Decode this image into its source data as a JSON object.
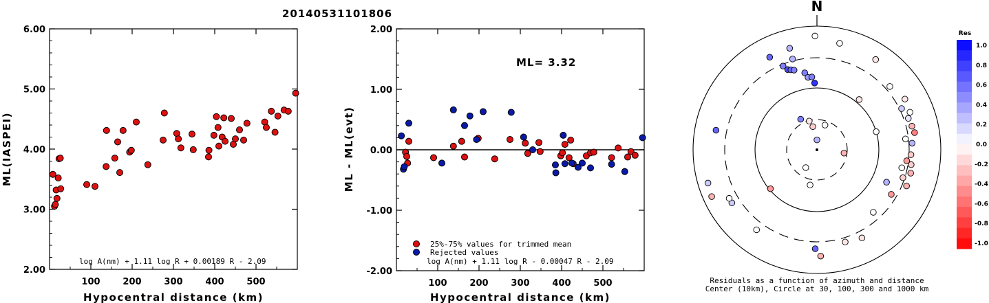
{
  "title": "20140531101806",
  "colors": {
    "accepted": "#dd1111",
    "rejected": "#0a1aa8",
    "axis": "#000000"
  },
  "chart_data": [
    {
      "type": "scatter",
      "id": "left",
      "ylabel": "ML(IASPEI)",
      "xlabel": "Hypocentral distance (km)",
      "xlim": [
        0,
        600
      ],
      "ylim": [
        2.0,
        6.0
      ],
      "xticks": [
        "100",
        "200",
        "300",
        "400",
        "500"
      ],
      "xtick_values": [
        100,
        200,
        300,
        400,
        500
      ],
      "yticks": [
        "2.00",
        "3.00",
        "4.00",
        "5.00",
        "6.00"
      ],
      "ytick_values": [
        2,
        3,
        4,
        5,
        6
      ],
      "formula": "log A(nm) + 1.11 log R + 0.00189 R - 2.09",
      "series": [
        {
          "x": [
            8,
            12,
            14,
            16,
            18,
            21,
            23,
            26,
            27,
            90,
            110,
            137,
            138,
            158,
            165,
            170,
            178,
            194,
            198,
            210,
            238,
            275,
            278,
            308,
            312,
            318,
            345,
            348,
            385,
            386,
            398,
            404,
            408,
            410,
            418,
            422,
            425,
            440,
            445,
            450,
            460,
            470,
            478,
            521,
            525,
            537,
            546,
            553,
            568,
            578,
            596
          ],
          "y": [
            3.58,
            3.05,
            3.08,
            3.32,
            3.18,
            3.52,
            3.84,
            3.85,
            3.34,
            3.41,
            3.38,
            3.71,
            4.31,
            3.85,
            4.12,
            3.61,
            4.31,
            3.95,
            3.98,
            4.45,
            3.74,
            4.15,
            4.6,
            4.26,
            4.17,
            4.02,
            4.25,
            3.99,
            3.87,
            3.98,
            4.23,
            4.54,
            4.36,
            4.05,
            4.2,
            4.52,
            4.13,
            4.51,
            4.08,
            4.17,
            4.32,
            4.15,
            4.43,
            4.45,
            4.36,
            4.63,
            4.28,
            4.55,
            4.65,
            4.63,
            4.93
          ]
        }
      ]
    },
    {
      "type": "scatter",
      "id": "middle",
      "ylabel": "ML - ML(evt)",
      "xlabel": "Hypocentral distance (km)",
      "xlim": [
        0,
        600
      ],
      "ylim": [
        -2.0,
        2.0
      ],
      "xticks": [
        "100",
        "200",
        "300",
        "400",
        "500"
      ],
      "xtick_values": [
        100,
        200,
        300,
        400,
        500
      ],
      "yticks": [
        "-2.00",
        "-1.00",
        "0.00",
        "1.00",
        "2.00"
      ],
      "ytick_values": [
        -2,
        -1,
        0,
        1,
        2
      ],
      "reference_line": 0,
      "annotation": "ML= 3.32",
      "formula": "log A(nm) + 1.11 log R - 0.00047 R - 2.09",
      "legend": [
        "25%-75% values for trimmed mean",
        "Rejected values"
      ],
      "series": [
        {
          "name": "25%-75% values for trimmed mean",
          "x": [
            22,
            25,
            27,
            30,
            90,
            138,
            158,
            165,
            198,
            238,
            275,
            312,
            318,
            345,
            348,
            398,
            402,
            408,
            418,
            422,
            428,
            460,
            470,
            478,
            521,
            537,
            560,
            568,
            578
          ],
          "y": [
            -0.04,
            -0.11,
            -0.22,
            0.14,
            -0.13,
            0.06,
            0.14,
            -0.12,
            0.19,
            -0.15,
            0.17,
            0.11,
            -0.06,
            0.12,
            -0.03,
            -0.1,
            -0.05,
            0.09,
            -0.13,
            0.16,
            -0.23,
            -0.1,
            -0.05,
            -0.04,
            -0.13,
            0.03,
            -0.12,
            -0.03,
            -0.09
          ]
        },
        {
          "name": "Rejected values",
          "x": [
            12,
            17,
            19,
            30,
            110,
            138,
            165,
            178,
            194,
            210,
            278,
            308,
            330,
            385,
            386,
            404,
            408,
            425,
            440,
            450,
            470,
            521,
            553,
            596
          ],
          "y": [
            0.23,
            -0.32,
            -0.28,
            0.44,
            -0.22,
            0.66,
            0.4,
            0.56,
            0.17,
            0.63,
            0.62,
            0.21,
            0.0,
            -0.25,
            -0.38,
            0.24,
            -0.23,
            -0.22,
            -0.29,
            -0.22,
            -0.3,
            -0.24,
            -0.36,
            0.2
          ]
        }
      ]
    },
    {
      "type": "scatter",
      "id": "polar",
      "title": "N",
      "caption_line1": "Residuals as a function of azimuth and distance",
      "caption_line2": "Center (10km), Circle at 30, 100, 300 and 1000 km",
      "ring_distances_km": [
        30,
        100,
        300,
        1000
      ],
      "colorbar": {
        "title": "Res",
        "ticks": [
          "1.0",
          "0.8",
          "0.6",
          "0.4",
          "0.2",
          "0.0",
          "-0.2",
          "-0.4",
          "-0.6",
          "-0.8",
          "-1.0"
        ],
        "range": [
          -1.0,
          1.0
        ]
      },
      "points": [
        {
          "az": 359,
          "r": 0.92,
          "res": 0.0
        },
        {
          "az": 12,
          "r": 0.88,
          "res": 0.0
        },
        {
          "az": 33,
          "r": 0.87,
          "res": -0.1
        },
        {
          "az": 345,
          "r": 0.85,
          "res": 0.3
        },
        {
          "az": 333,
          "r": 0.84,
          "res": 0.6
        },
        {
          "az": 345,
          "r": 0.76,
          "res": 0.3
        },
        {
          "az": 338,
          "r": 0.73,
          "res": 0.5
        },
        {
          "az": 340,
          "r": 0.69,
          "res": 0.7
        },
        {
          "az": 342,
          "r": 0.68,
          "res": 0.6
        },
        {
          "az": 344,
          "r": 0.67,
          "res": 0.5
        },
        {
          "az": 351,
          "r": 0.63,
          "res": 0.5
        },
        {
          "az": 353,
          "r": 0.59,
          "res": 0.4
        },
        {
          "az": 356,
          "r": 0.59,
          "res": 0.5
        },
        {
          "az": 358,
          "r": 0.54,
          "res": 0.8
        },
        {
          "az": 49,
          "r": 0.78,
          "res": 0.0
        },
        {
          "az": 60,
          "r": 0.82,
          "res": -0.1
        },
        {
          "az": 64,
          "r": 0.76,
          "res": 0.2
        },
        {
          "az": 68,
          "r": 0.81,
          "res": 0.0
        },
        {
          "az": 71,
          "r": 0.78,
          "res": 0.1
        },
        {
          "az": 76,
          "r": 0.79,
          "res": -0.3
        },
        {
          "az": 80,
          "r": 0.8,
          "res": -0.5
        },
        {
          "az": 83,
          "r": 0.72,
          "res": 0.0
        },
        {
          "az": 86,
          "r": 0.77,
          "res": 0.3
        },
        {
          "az": 93,
          "r": 0.76,
          "res": -0.2
        },
        {
          "az": 97,
          "r": 0.73,
          "res": -0.4
        },
        {
          "az": 99,
          "r": 0.77,
          "res": -0.2
        },
        {
          "az": 102,
          "r": 0.7,
          "res": 0.0
        },
        {
          "az": 104,
          "r": 0.78,
          "res": -0.3
        },
        {
          "az": 108,
          "r": 0.73,
          "res": -0.2
        },
        {
          "az": 112,
          "r": 0.78,
          "res": -0.3
        },
        {
          "az": 115,
          "r": 0.62,
          "res": 0.3
        },
        {
          "az": 121,
          "r": 0.7,
          "res": -0.4
        },
        {
          "az": 40,
          "r": 0.53,
          "res": -0.1
        },
        {
          "az": 73,
          "r": 0.5,
          "res": 0.0
        },
        {
          "az": 138,
          "r": 0.68,
          "res": 0.0
        },
        {
          "az": 153,
          "r": 0.8,
          "res": -0.1
        },
        {
          "az": 163,
          "r": 0.78,
          "res": -0.1
        },
        {
          "az": 178,
          "r": 0.86,
          "res": -0.3
        },
        {
          "az": 181,
          "r": 0.8,
          "res": 0.6
        },
        {
          "az": 217,
          "r": 0.81,
          "res": 0.0
        },
        {
          "az": 230,
          "r": 0.49,
          "res": -0.4
        },
        {
          "az": 238,
          "r": 0.81,
          "res": 0.2
        },
        {
          "az": 241,
          "r": 0.81,
          "res": 0.0
        },
        {
          "az": 246,
          "r": 0.93,
          "res": -0.3
        },
        {
          "az": 253,
          "r": 0.92,
          "res": 0.2
        },
        {
          "az": 281,
          "r": 0.83,
          "res": 0.6
        },
        {
          "az": 332,
          "r": 0.28,
          "res": 0.5
        },
        {
          "az": 345,
          "r": 0.24,
          "res": -0.1
        },
        {
          "az": 350,
          "r": 0.19,
          "res": -0.2
        },
        {
          "az": 18,
          "r": 0.21,
          "res": 0.0
        },
        {
          "az": 97,
          "r": 0.22,
          "res": -0.3
        },
        {
          "az": 360,
          "r": 0.08,
          "res": 0.3
        },
        {
          "az": 212,
          "r": 0.17,
          "res": 0.0
        },
        {
          "az": 191,
          "r": 0.29,
          "res": 0.0
        }
      ]
    }
  ]
}
